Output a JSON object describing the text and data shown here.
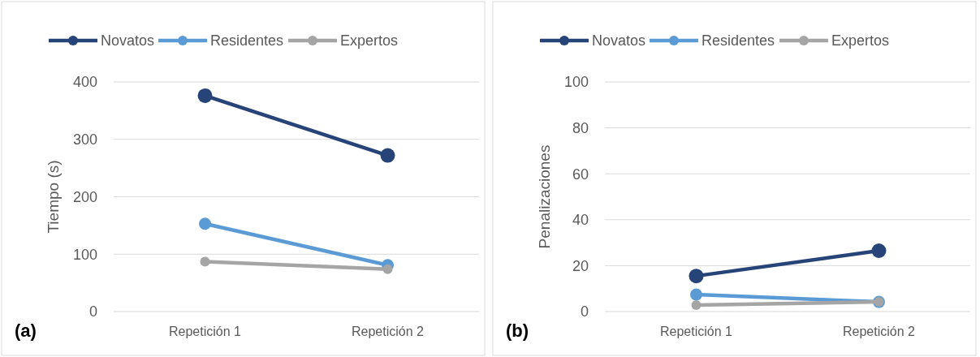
{
  "chart_data": [
    {
      "type": "line",
      "ylabel": "Tiempo (s)",
      "categories": [
        "Repetición 1",
        "Repetición 2"
      ],
      "series": [
        {
          "name": "Novatos",
          "color": "#264478",
          "values": [
            376,
            272
          ]
        },
        {
          "name": "Residentes",
          "color": "#5b9bd5",
          "values": [
            153,
            81
          ]
        },
        {
          "name": "Expertos",
          "color": "#a5a5a5",
          "values": [
            87,
            74
          ]
        }
      ],
      "ylim": [
        0,
        400
      ],
      "yticks": [
        0,
        100,
        200,
        300,
        400
      ],
      "grid": "y",
      "legend": "top",
      "marker": "circle",
      "line_style": "solid",
      "annotations": [
        "(a)"
      ]
    },
    {
      "type": "line",
      "ylabel": "Penalizaciones",
      "categories": [
        "Repetición 1",
        "Repetición 2"
      ],
      "series": [
        {
          "name": "Novatos",
          "color": "#264478",
          "values": [
            15.5,
            26.5
          ]
        },
        {
          "name": "Residentes",
          "color": "#5b9bd5",
          "values": [
            7.4,
            4.2
          ]
        },
        {
          "name": "Expertos",
          "color": "#a5a5a5",
          "values": [
            2.8,
            4.2
          ]
        }
      ],
      "ylim": [
        0,
        100
      ],
      "yticks": [
        0,
        20,
        40,
        60,
        80,
        100
      ],
      "grid": "y",
      "legend": "top",
      "marker": "circle",
      "line_style": "solid",
      "annotations": [
        "(b)"
      ]
    }
  ]
}
